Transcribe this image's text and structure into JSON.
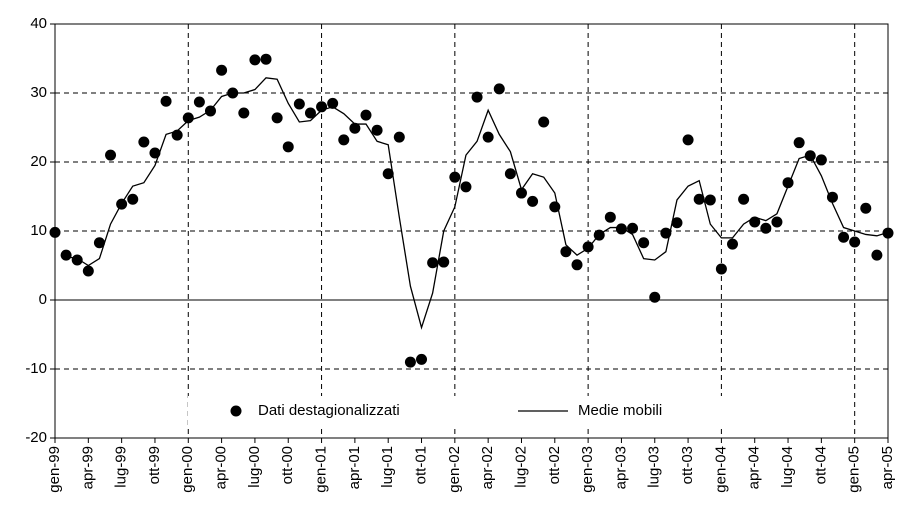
{
  "chart_data": {
    "type": "line",
    "categories": [
      "gen-99",
      null,
      null,
      "apr-99",
      null,
      null,
      "lug-99",
      null,
      null,
      "ott-99",
      null,
      null,
      "gen-00",
      null,
      null,
      "apr-00",
      null,
      null,
      "lug-00",
      null,
      null,
      "ott-00",
      null,
      null,
      "gen-01",
      null,
      null,
      "apr-01",
      null,
      null,
      "lug-01",
      null,
      null,
      "ott-01",
      null,
      null,
      "gen-02",
      null,
      null,
      "apr-02",
      null,
      null,
      "lug-02",
      null,
      null,
      "ott-02",
      null,
      null,
      "gen-03",
      null,
      null,
      "apr-03",
      null,
      null,
      "lug-03",
      null,
      null,
      "ott-03",
      null,
      null,
      "gen-04",
      null,
      null,
      "apr-04",
      null,
      null,
      "lug-04",
      null,
      null,
      "ott-04",
      null,
      null,
      "gen-05",
      null,
      null,
      "apr-05"
    ],
    "series": [
      {
        "name": "Dati destagionalizzati",
        "type": "scatter",
        "color": "#000000",
        "values": [
          9.8,
          6.5,
          5.8,
          4.2,
          8.3,
          21.0,
          13.9,
          14.6,
          22.9,
          21.3,
          28.8,
          23.9,
          26.4,
          28.7,
          27.4,
          33.3,
          30.0,
          27.1,
          34.8,
          34.9,
          26.4,
          22.2,
          28.4,
          27.1,
          28.0,
          28.5,
          23.2,
          24.9,
          26.8,
          24.6,
          18.3,
          23.6,
          -9.0,
          -8.6,
          5.4,
          5.5,
          17.8,
          16.4,
          29.4,
          23.6,
          30.6,
          18.3,
          15.5,
          14.3,
          25.8,
          13.5,
          7.0,
          5.1,
          7.7,
          9.4,
          12.0,
          10.3,
          10.4,
          8.3,
          0.4,
          9.7,
          11.2,
          23.2,
          14.6,
          14.5,
          4.5,
          8.1,
          14.6,
          11.3,
          10.4,
          11.3,
          17.0,
          22.8,
          20.9,
          20.3,
          14.9,
          9.1,
          8.4,
          13.3,
          6.5,
          9.7
        ]
      },
      {
        "name": "Medie mobili",
        "type": "line",
        "color": "#000000",
        "values": [
          null,
          6.3,
          6.0,
          5.0,
          6.0,
          11.0,
          14.0,
          16.5,
          17.0,
          19.5,
          24.0,
          24.5,
          26.0,
          26.5,
          27.5,
          29.5,
          30.0,
          30.0,
          30.5,
          32.2,
          32.0,
          28.5,
          25.8,
          26.0,
          27.5,
          28.0,
          27.0,
          25.5,
          25.5,
          23.0,
          22.5,
          12.0,
          2.0,
          -4.0,
          1.0,
          10.0,
          13.5,
          21.0,
          23.0,
          27.5,
          24.0,
          21.5,
          16.0,
          18.3,
          17.8,
          15.5,
          8.0,
          6.5,
          7.5,
          9.5,
          10.5,
          10.5,
          9.5,
          6.0,
          5.8,
          7.0,
          14.5,
          16.5,
          17.3,
          11.0,
          9.0,
          9.0,
          11.0,
          12.0,
          11.5,
          12.5,
          16.5,
          20.5,
          21.0,
          18.0,
          14.0,
          10.5,
          10.0,
          9.5,
          9.3,
          9.8
        ]
      }
    ],
    "ylim": [
      -20,
      40
    ],
    "yticks": [
      -20,
      -10,
      0,
      10,
      20,
      30,
      40
    ],
    "grid": true
  }
}
